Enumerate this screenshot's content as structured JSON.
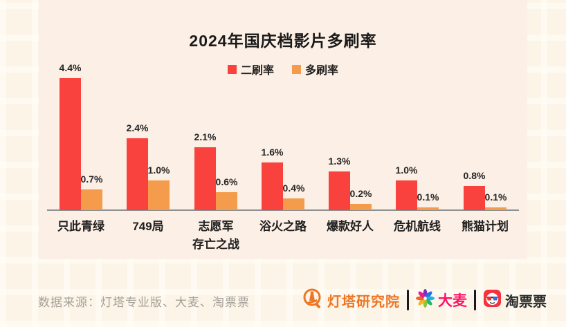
{
  "title": "2024年国庆档影片多刷率",
  "chart_data": {
    "type": "bar",
    "categories": [
      "只此青绿",
      "749局",
      "志愿军\n存亡之战",
      "浴火之路",
      "爆款好人",
      "危机航线",
      "熊猫计划"
    ],
    "series": [
      {
        "name": "二刷率",
        "color": "#f9423d",
        "values": [
          4.4,
          2.4,
          2.1,
          1.6,
          1.3,
          1.0,
          0.8
        ]
      },
      {
        "name": "多刷率",
        "color": "#f49c4b",
        "values": [
          0.7,
          1.0,
          0.6,
          0.4,
          0.2,
          0.1,
          0.1
        ]
      }
    ],
    "value_suffix": "%",
    "title": "2024年国庆档影片多刷率",
    "xlabel": "",
    "ylabel": "",
    "ylim": [
      0,
      4.8
    ],
    "grid": false,
    "legend_position": "top",
    "data_labels": true
  },
  "colors": {
    "background": "#fbf4e7",
    "card": "#fcefe5",
    "series_red": "#f9423d",
    "series_orange": "#f49c4b",
    "axis": "#8f8f8f",
    "text": "#1f1f1f",
    "source": "#a5a098",
    "beacon_orange": "#ee7624",
    "damai_pink": "#ff1268",
    "tpp_red": "#f5333f"
  },
  "footer": {
    "source_text": "数据来源：灯塔专业版、大麦、淘票票"
  },
  "logos": {
    "beacon": {
      "text": "灯塔研究院"
    },
    "damai": {
      "text": "大麦"
    },
    "taopiaopiao": {
      "text": "淘票票"
    }
  }
}
